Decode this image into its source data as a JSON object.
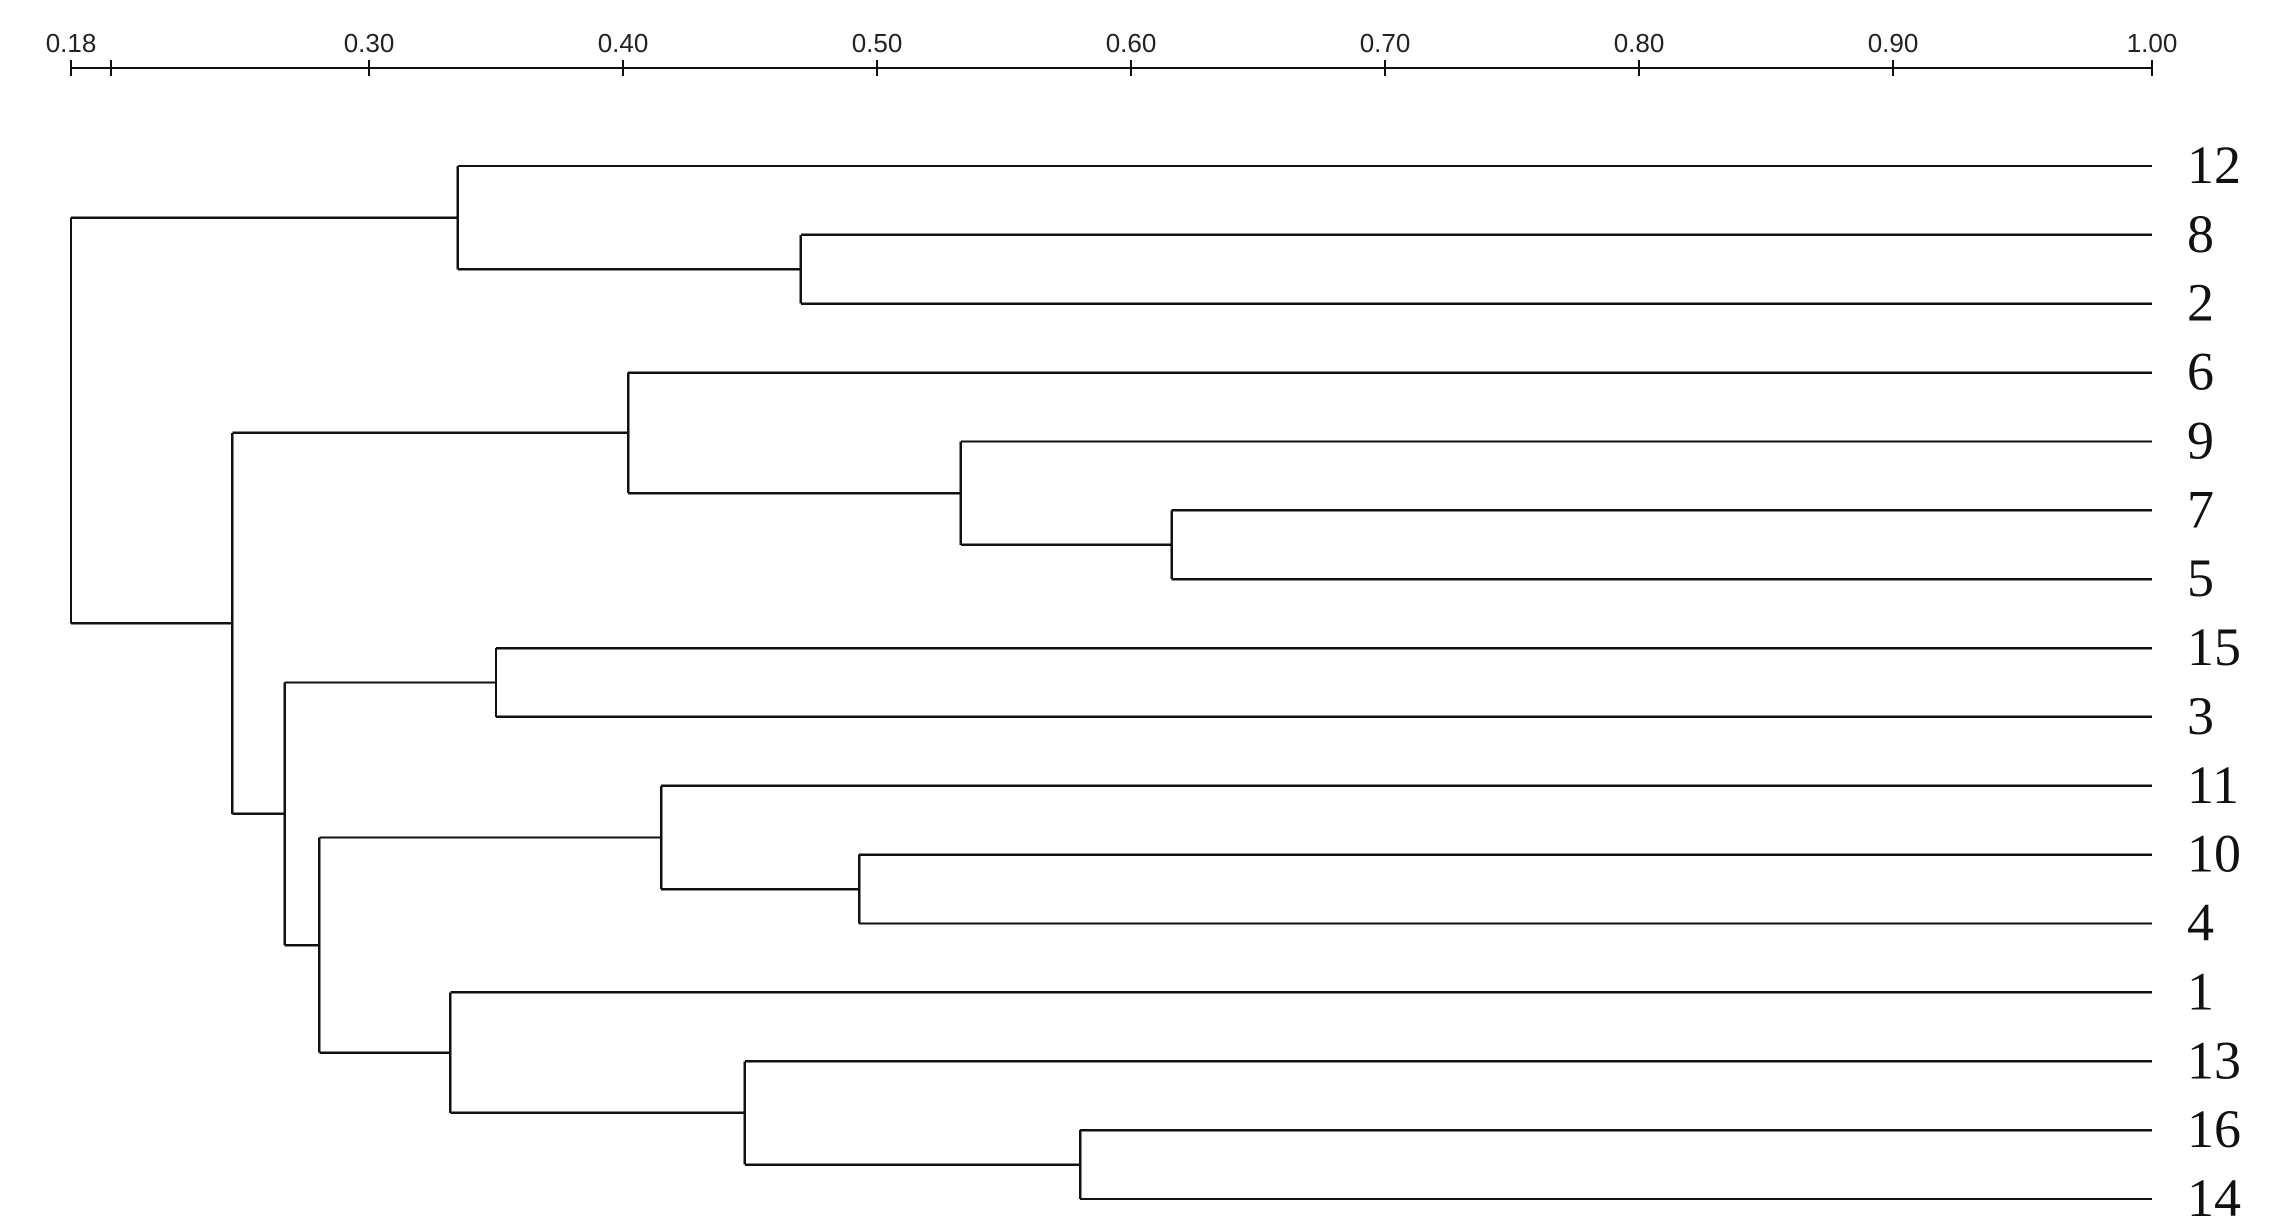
{
  "chart_data": {
    "type": "dendrogram",
    "orientation": "horizontal",
    "axis_ticks": [
      "0.18",
      "0.30",
      "0.40",
      "0.50",
      "0.60",
      "0.70",
      "0.80",
      "0.90",
      "1.00"
    ],
    "axis_range": [
      0.18,
      1.0
    ],
    "leaves": [
      "12",
      "8",
      "2",
      "6",
      "9",
      "7",
      "5",
      "15",
      "3",
      "11",
      "10",
      "4",
      "1",
      "13",
      "16",
      "14"
    ],
    "merges": [
      {
        "id": "c8_2",
        "children": [
          "8",
          "2"
        ],
        "similarity": 0.47
      },
      {
        "id": "c12_8_2",
        "children": [
          "12",
          "c8_2"
        ],
        "similarity": 0.335
      },
      {
        "id": "c7_5",
        "children": [
          "7",
          "5"
        ],
        "similarity": 0.616
      },
      {
        "id": "c9_7_5",
        "children": [
          "9",
          "c7_5"
        ],
        "similarity": 0.533
      },
      {
        "id": "c6_9_7_5",
        "children": [
          "6",
          "c9_7_5"
        ],
        "similarity": 0.402
      },
      {
        "id": "c15_3",
        "children": [
          "15",
          "3"
        ],
        "similarity": 0.35
      },
      {
        "id": "c10_4",
        "children": [
          "10",
          "4"
        ],
        "similarity": 0.493
      },
      {
        "id": "c11_10_4",
        "children": [
          "11",
          "c10_4"
        ],
        "similarity": 0.415
      },
      {
        "id": "c16_14",
        "children": [
          "16",
          "14"
        ],
        "similarity": 0.58
      },
      {
        "id": "c13_16_14",
        "children": [
          "13",
          "c16_14"
        ],
        "similarity": 0.448
      },
      {
        "id": "c1_13_16_14",
        "children": [
          "1",
          "c13_16_14"
        ],
        "similarity": 0.332
      },
      {
        "id": "cB1",
        "children": [
          "c11_10_4",
          "c1_13_16_14"
        ],
        "similarity": 0.28
      },
      {
        "id": "cB2",
        "children": [
          "c15_3",
          "cB1"
        ],
        "similarity": 0.266
      },
      {
        "id": "cB3",
        "children": [
          "c6_9_7_5",
          "cB2"
        ],
        "similarity": 0.245
      },
      {
        "id": "root",
        "children": [
          "c12_8_2",
          "cB3"
        ],
        "similarity": 0.18
      }
    ]
  }
}
